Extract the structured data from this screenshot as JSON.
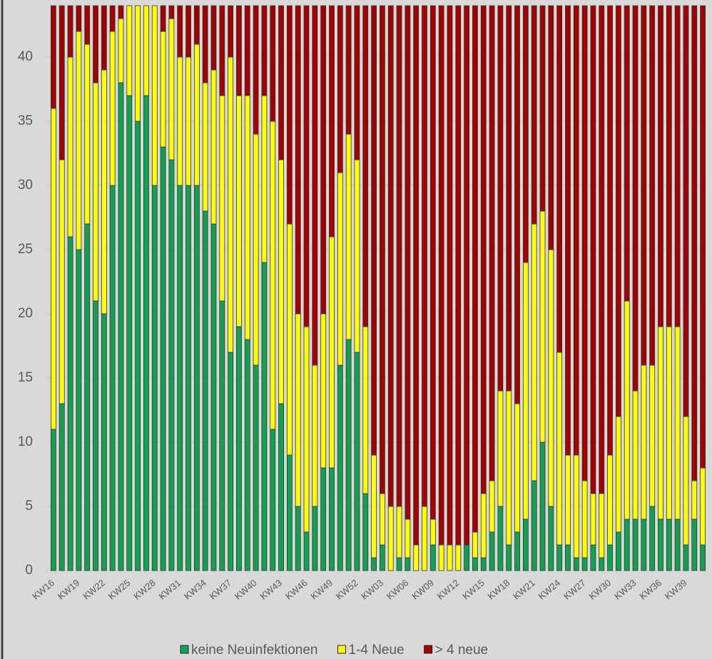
{
  "chart_data": {
    "type": "stacked_bar",
    "categories": [
      "KW16",
      null,
      null,
      "KW19",
      null,
      null,
      "KW22",
      null,
      null,
      "KW25",
      null,
      null,
      "KW28",
      null,
      null,
      "KW31",
      null,
      null,
      "KW34",
      null,
      null,
      "KW37",
      null,
      null,
      "KW40",
      null,
      null,
      "KW43",
      null,
      null,
      "KW46",
      null,
      null,
      "KW49",
      null,
      null,
      "KW52",
      null,
      null,
      "KW03",
      null,
      null,
      "KW06",
      null,
      null,
      "KW09",
      null,
      null,
      "KW12",
      null,
      null,
      "KW15",
      null,
      null,
      "KW18",
      null,
      null,
      "KW21",
      null,
      null,
      "KW24",
      null,
      null,
      "KW27",
      null,
      null,
      "KW30",
      null,
      null,
      "KW33",
      null,
      null,
      "KW36",
      null,
      null,
      "KW39",
      null,
      null
    ],
    "series": [
      {
        "name": "keine Neuinfektionen",
        "color": "#12a150",
        "values": [
          11,
          13,
          26,
          25,
          27,
          21,
          20,
          30,
          38,
          37,
          35,
          37,
          30,
          33,
          32,
          30,
          30,
          30,
          28,
          27,
          21,
          17,
          19,
          18,
          16,
          24,
          11,
          13,
          9,
          5,
          3,
          5,
          8,
          8,
          16,
          18,
          17,
          6,
          1,
          2,
          0,
          1,
          1,
          0,
          0,
          2,
          0,
          0,
          0,
          2,
          1,
          1,
          3,
          5,
          2,
          3,
          4,
          7,
          10,
          5,
          2,
          2,
          1,
          1,
          2,
          1,
          2,
          3,
          4,
          4,
          4,
          5,
          4,
          4,
          4,
          2,
          4,
          2
        ]
      },
      {
        "name": "1-4 Neue",
        "color": "#ffff00",
        "values": [
          25,
          19,
          14,
          17,
          14,
          17,
          19,
          12,
          5,
          7,
          9,
          7,
          14,
          9,
          11,
          10,
          10,
          11,
          10,
          12,
          16,
          23,
          18,
          19,
          18,
          13,
          24,
          19,
          18,
          15,
          16,
          11,
          12,
          18,
          15,
          16,
          15,
          13,
          8,
          4,
          5,
          4,
          3,
          2,
          5,
          2,
          2,
          2,
          2,
          0,
          2,
          5,
          4,
          9,
          12,
          10,
          20,
          20,
          18,
          20,
          15,
          7,
          8,
          6,
          4,
          5,
          7,
          9,
          17,
          10,
          12,
          11,
          15,
          15,
          15,
          10,
          3,
          6
        ]
      },
      {
        "name": "> 4 neue",
        "color": "#a50000",
        "values": [
          8,
          12,
          4,
          2,
          3,
          6,
          5,
          2,
          1,
          0,
          0,
          0,
          0,
          2,
          1,
          4,
          4,
          3,
          6,
          5,
          7,
          4,
          7,
          7,
          10,
          7,
          9,
          12,
          17,
          24,
          25,
          28,
          24,
          18,
          13,
          10,
          12,
          25,
          35,
          38,
          39,
          39,
          40,
          42,
          39,
          40,
          42,
          42,
          42,
          42,
          41,
          38,
          37,
          30,
          30,
          31,
          20,
          17,
          16,
          19,
          27,
          35,
          35,
          37,
          38,
          38,
          35,
          32,
          23,
          30,
          28,
          28,
          25,
          25,
          25,
          32,
          37,
          36
        ]
      }
    ],
    "ylim": [
      0,
      44
    ],
    "yticks": [
      0,
      5,
      10,
      15,
      20,
      25,
      30,
      35,
      40
    ],
    "grid": true,
    "legend": "bottom"
  }
}
